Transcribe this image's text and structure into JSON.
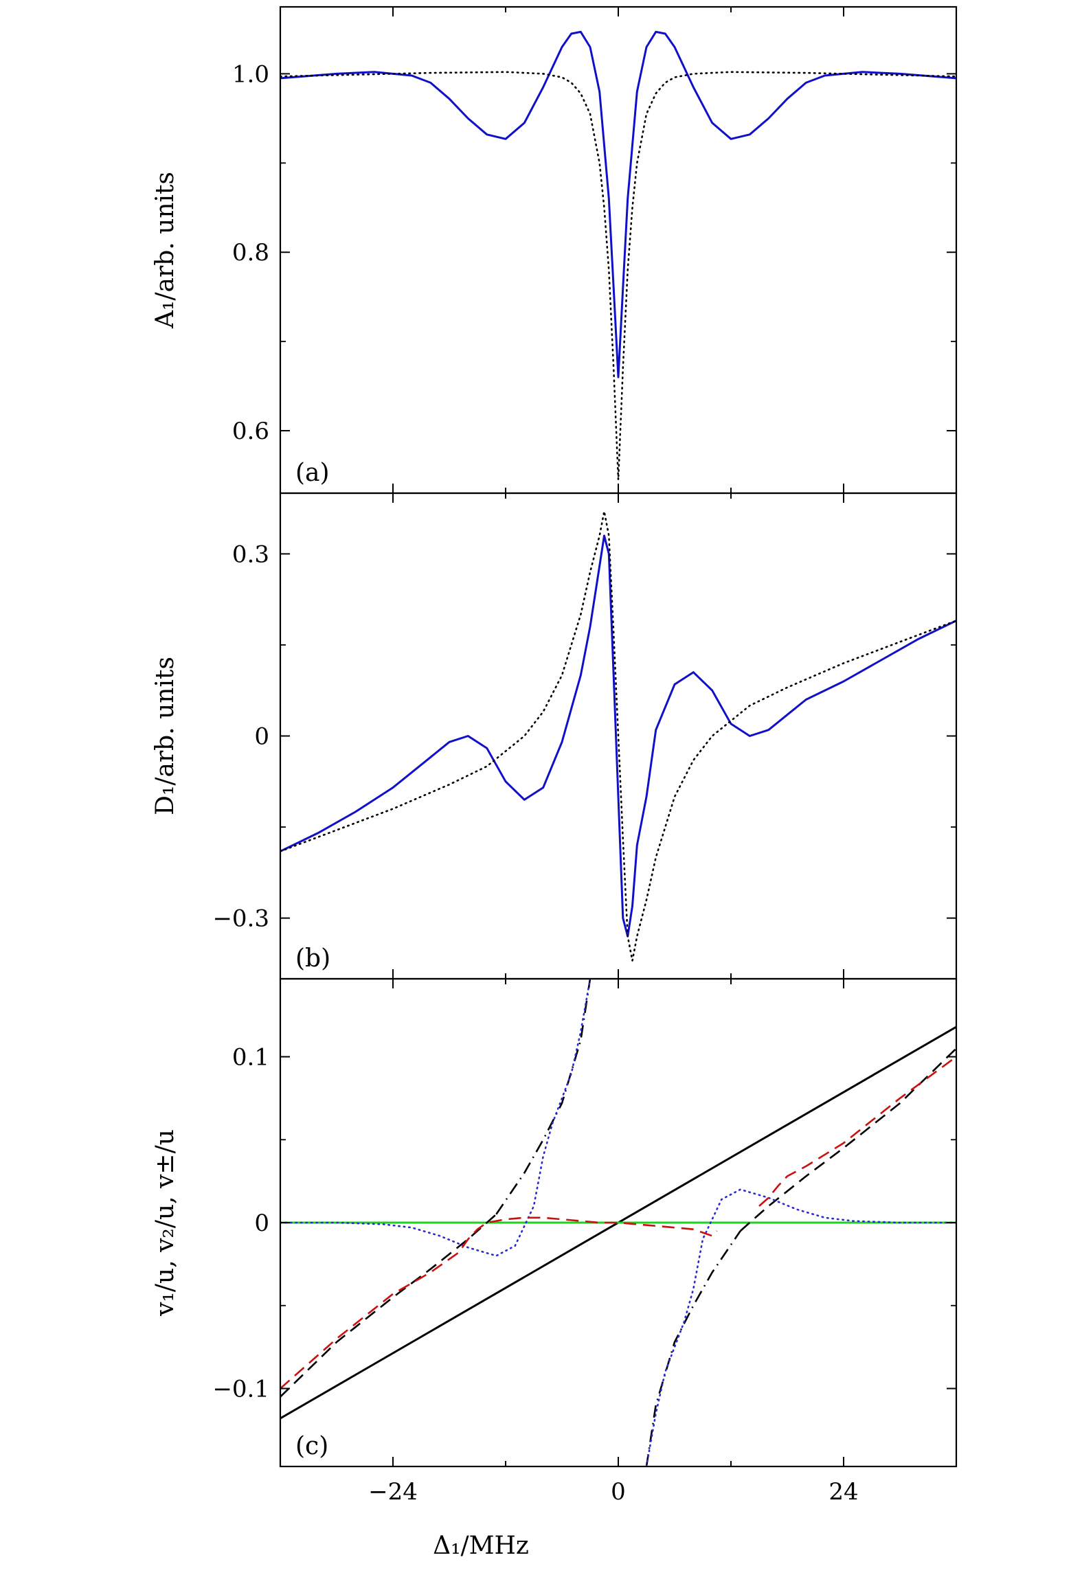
{
  "figure": {
    "xlabel": "Δ₁/MHz",
    "xlim": [
      -36,
      36
    ],
    "xticks": [
      -24,
      0,
      24
    ],
    "xtick_labels": [
      "−24",
      "0",
      "24"
    ],
    "xminor": [
      -36,
      -24,
      -12,
      0,
      12,
      24,
      36
    ]
  },
  "chart_data": [
    {
      "type": "line",
      "panel_label": "(a)",
      "ylabel": "A₁/arb. units",
      "ylim": [
        0.53,
        1.075
      ],
      "yticks": [
        0.6,
        0.8,
        1.0
      ],
      "ytick_labels": [
        "0.6",
        "0.8",
        "1.0"
      ],
      "yminor": [
        0.7,
        0.9
      ],
      "series": [
        {
          "color": "#1010c8",
          "style": "solid",
          "x": [
            -36,
            -30,
            -26,
            -22,
            -20,
            -18,
            -16,
            -14,
            -12,
            -10,
            -8,
            -6,
            -5,
            -4,
            -3,
            -2,
            -1,
            -0.5,
            0,
            0.5,
            1,
            2,
            3,
            4,
            5,
            6,
            8,
            10,
            12,
            14,
            16,
            18,
            20,
            22,
            26,
            30,
            36
          ],
          "y": [
            0.995,
            1.0,
            1.002,
            0.998,
            0.99,
            0.972,
            0.95,
            0.932,
            0.927,
            0.945,
            0.985,
            1.03,
            1.045,
            1.047,
            1.03,
            0.98,
            0.86,
            0.76,
            0.66,
            0.76,
            0.86,
            0.98,
            1.03,
            1.047,
            1.045,
            1.03,
            0.985,
            0.945,
            0.927,
            0.932,
            0.95,
            0.972,
            0.99,
            0.998,
            1.002,
            1.0,
            0.995
          ]
        },
        {
          "color": "#000000",
          "style": "dotted",
          "x": [
            -36,
            -20,
            -12,
            -8,
            -6,
            -5,
            -4,
            -3,
            -2,
            -1.5,
            -1,
            -0.5,
            0,
            0.5,
            1,
            1.5,
            2,
            3,
            4,
            5,
            6,
            8,
            12,
            20,
            36
          ],
          "y": [
            0.997,
            1.001,
            1.002,
            1.0,
            0.996,
            0.99,
            0.978,
            0.955,
            0.9,
            0.85,
            0.78,
            0.67,
            0.545,
            0.67,
            0.78,
            0.85,
            0.9,
            0.955,
            0.978,
            0.99,
            0.996,
            1.0,
            1.002,
            1.001,
            0.997
          ]
        }
      ]
    },
    {
      "type": "line",
      "panel_label": "(b)",
      "ylabel": "D₁/arb. units",
      "ylim": [
        -0.4,
        0.4
      ],
      "yticks": [
        -0.3,
        0,
        0.3
      ],
      "ytick_labels": [
        "−0.3",
        "0",
        "0.3"
      ],
      "yminor": [
        -0.15,
        0.15
      ],
      "series": [
        {
          "color": "#1010c8",
          "style": "solid",
          "x": [
            -36,
            -32,
            -28,
            -24,
            -20,
            -18,
            -16,
            -14,
            -12,
            -10,
            -8,
            -6,
            -4,
            -3,
            -2,
            -1.5,
            -1,
            -0.5,
            0,
            0.5,
            1,
            1.5,
            2,
            3,
            4,
            6,
            8,
            10,
            12,
            14,
            16,
            18,
            20,
            24,
            28,
            32,
            36
          ],
          "y": [
            -0.19,
            -0.16,
            -0.125,
            -0.085,
            -0.035,
            -0.01,
            0.0,
            -0.02,
            -0.075,
            -0.105,
            -0.085,
            -0.01,
            0.1,
            0.18,
            0.28,
            0.33,
            0.3,
            0.1,
            -0.1,
            -0.3,
            -0.33,
            -0.28,
            -0.18,
            -0.1,
            0.01,
            0.085,
            0.105,
            0.075,
            0.02,
            0.0,
            0.01,
            0.035,
            0.06,
            0.09,
            0.125,
            0.16,
            0.19
          ]
        },
        {
          "color": "#000000",
          "style": "dotted",
          "x": [
            -36,
            -30,
            -24,
            -18,
            -14,
            -10,
            -8,
            -6,
            -4,
            -3,
            -2,
            -1.5,
            -1,
            -0.5,
            0,
            0.5,
            1,
            1.5,
            2,
            3,
            4,
            6,
            8,
            10,
            14,
            18,
            24,
            30,
            36
          ],
          "y": [
            -0.19,
            -0.155,
            -0.12,
            -0.08,
            -0.05,
            0.0,
            0.04,
            0.1,
            0.2,
            0.27,
            0.33,
            0.37,
            0.33,
            0.17,
            0.0,
            -0.17,
            -0.33,
            -0.37,
            -0.33,
            -0.27,
            -0.2,
            -0.1,
            -0.04,
            0.0,
            0.05,
            0.08,
            0.12,
            0.155,
            0.19
          ]
        }
      ]
    },
    {
      "type": "line",
      "panel_label": "(c)",
      "ylabel": "v₁/u, v₂/u, v±/u",
      "ylim": [
        -0.147,
        0.147
      ],
      "yticks": [
        -0.1,
        0,
        0.1
      ],
      "ytick_labels": [
        "−0.1",
        "0",
        "0.1"
      ],
      "yminor": [
        -0.05,
        0.05
      ],
      "series": [
        {
          "color": "#000000",
          "style": "solid",
          "x": [
            -36,
            36
          ],
          "y": [
            -0.118,
            0.118
          ]
        },
        {
          "color": "#20d020",
          "style": "solid",
          "x": [
            -36,
            36
          ],
          "y": [
            0,
            0
          ]
        },
        {
          "color": "#000000",
          "style": "dashed",
          "x": [
            -36,
            -30,
            -24,
            -20,
            -16,
            -14,
            -13
          ],
          "y": [
            -0.105,
            -0.072,
            -0.045,
            -0.028,
            -0.01,
            0.0,
            0.005
          ]
        },
        {
          "color": "#000000",
          "style": "dashed",
          "x": [
            13,
            14,
            16,
            20,
            24,
            30,
            36
          ],
          "y": [
            -0.005,
            0.0,
            0.01,
            0.028,
            0.045,
            0.072,
            0.105
          ]
        },
        {
          "color": "#000000",
          "style": "dashdot",
          "x": [
            -13,
            -10,
            -8,
            -6,
            -4,
            -3
          ],
          "y": [
            0.005,
            0.03,
            0.05,
            0.072,
            0.11,
            0.147
          ]
        },
        {
          "color": "#000000",
          "style": "dashdot",
          "x": [
            3,
            4,
            6,
            8,
            10,
            13
          ],
          "y": [
            -0.147,
            -0.11,
            -0.072,
            -0.05,
            -0.03,
            -0.005
          ]
        },
        {
          "color": "#2a2ad0",
          "style": "dotted",
          "x": [
            -36,
            -30,
            -25,
            -22,
            -19,
            -16,
            -13,
            -11,
            -9,
            -8,
            -7,
            -6,
            -5,
            -4,
            -3
          ],
          "y": [
            0.0,
            0.0,
            -0.001,
            -0.003,
            -0.008,
            -0.015,
            -0.02,
            -0.014,
            0.01,
            0.04,
            0.06,
            0.075,
            0.09,
            0.115,
            0.147
          ]
        },
        {
          "color": "#2a2ad0",
          "style": "dotted",
          "x": [
            3,
            4,
            5,
            6,
            7,
            8,
            9,
            11,
            13,
            16,
            19,
            22,
            25,
            30,
            36
          ],
          "y": [
            -0.147,
            -0.115,
            -0.09,
            -0.075,
            -0.06,
            -0.04,
            -0.01,
            0.014,
            0.02,
            0.015,
            0.008,
            0.003,
            0.001,
            0.0,
            0.0
          ]
        },
        {
          "color": "#cc1010",
          "style": "dashed",
          "x": [
            -36,
            -30,
            -24,
            -20,
            -17,
            -16,
            -15,
            -14,
            -12,
            -10,
            -8,
            -6,
            -4,
            -2,
            0,
            2,
            4,
            6,
            8,
            9,
            10,
            10.5
          ],
          "y": [
            -0.1,
            -0.07,
            -0.043,
            -0.03,
            -0.018,
            -0.01,
            -0.004,
            0.0,
            0.002,
            0.003,
            0.003,
            0.002,
            0.001,
            0.0,
            0.0,
            -0.001,
            -0.002,
            -0.003,
            -0.004,
            -0.006,
            -0.008,
            -0.005
          ]
        },
        {
          "color": "#cc1010",
          "style": "dashed",
          "x": [
            15,
            16,
            17,
            18,
            20,
            24,
            30,
            36
          ],
          "y": [
            0.01,
            0.015,
            0.022,
            0.028,
            0.034,
            0.048,
            0.075,
            0.1
          ]
        }
      ]
    }
  ]
}
